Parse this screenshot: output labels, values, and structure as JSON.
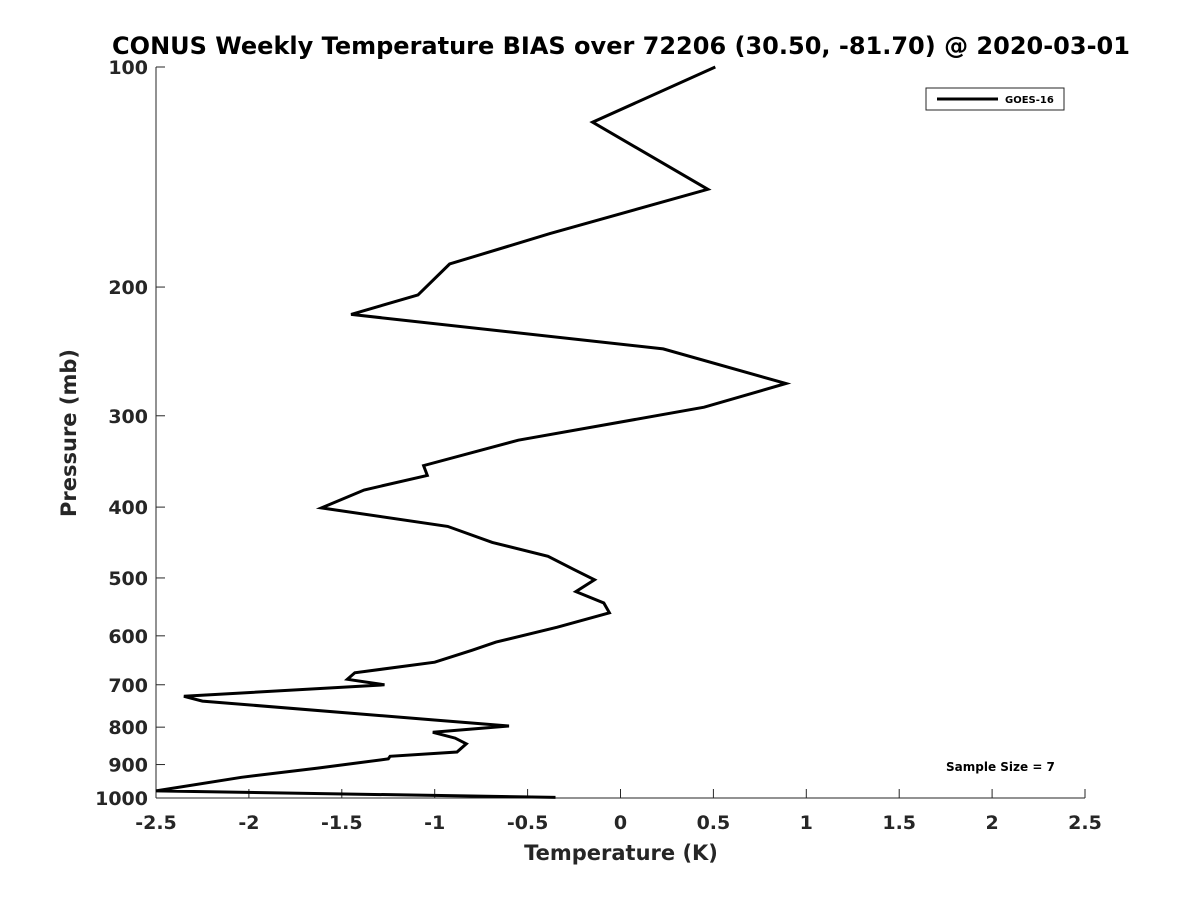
{
  "chart_data": {
    "type": "line",
    "title": "CONUS Weekly Temperature BIAS over 72206 (30.50, -81.70) @ 2020-03-01",
    "xlabel": "Temperature (K)",
    "ylabel": "Pressure (mb)",
    "xlim": [
      -2.5,
      2.5
    ],
    "ylim": [
      100,
      1000
    ],
    "y_scale": "log",
    "y_reversed": true,
    "x_ticks": [
      "-2.5",
      "-2",
      "-1.5",
      "-1",
      "-0.5",
      "0",
      "0.5",
      "1",
      "1.5",
      "2",
      "2.5"
    ],
    "y_ticks": [
      "100",
      "200",
      "300",
      "400",
      "500",
      "600",
      "700",
      "800",
      "900",
      "1000"
    ],
    "grid": false,
    "legend_position": "top-right",
    "line_color": "#000000",
    "series": [
      {
        "name": "GOES-16",
        "x": [
          0.51,
          -0.15,
          0.47,
          -0.38,
          -0.92,
          -1.09,
          -1.45,
          0.23,
          0.89,
          0.45,
          -0.55,
          -1.06,
          -1.04,
          -1.38,
          -1.61,
          -0.93,
          -0.69,
          -0.39,
          -0.25,
          -0.14,
          -0.24,
          -0.09,
          -0.06,
          -0.34,
          -0.67,
          -0.8,
          -1.0,
          -1.43,
          -1.47,
          -1.27,
          -2.35,
          -2.25,
          -1.01,
          -0.6,
          -1.01,
          -0.89,
          -0.83,
          -0.88,
          -1.24,
          -1.25,
          -1.63,
          -2.04,
          -2.5,
          -0.35
        ],
        "y": [
          100,
          119,
          147,
          169,
          186,
          205,
          218,
          243,
          271,
          292,
          324,
          351,
          362,
          379,
          401,
          425,
          447,
          467,
          487,
          503,
          522,
          541,
          558,
          584,
          612,
          628,
          652,
          674,
          688,
          700,
          726,
          737,
          782,
          797,
          813,
          828,
          843,
          865,
          877,
          884,
          910,
          937,
          978,
          998
        ]
      }
    ],
    "annotation": "Sample Size = 7"
  }
}
